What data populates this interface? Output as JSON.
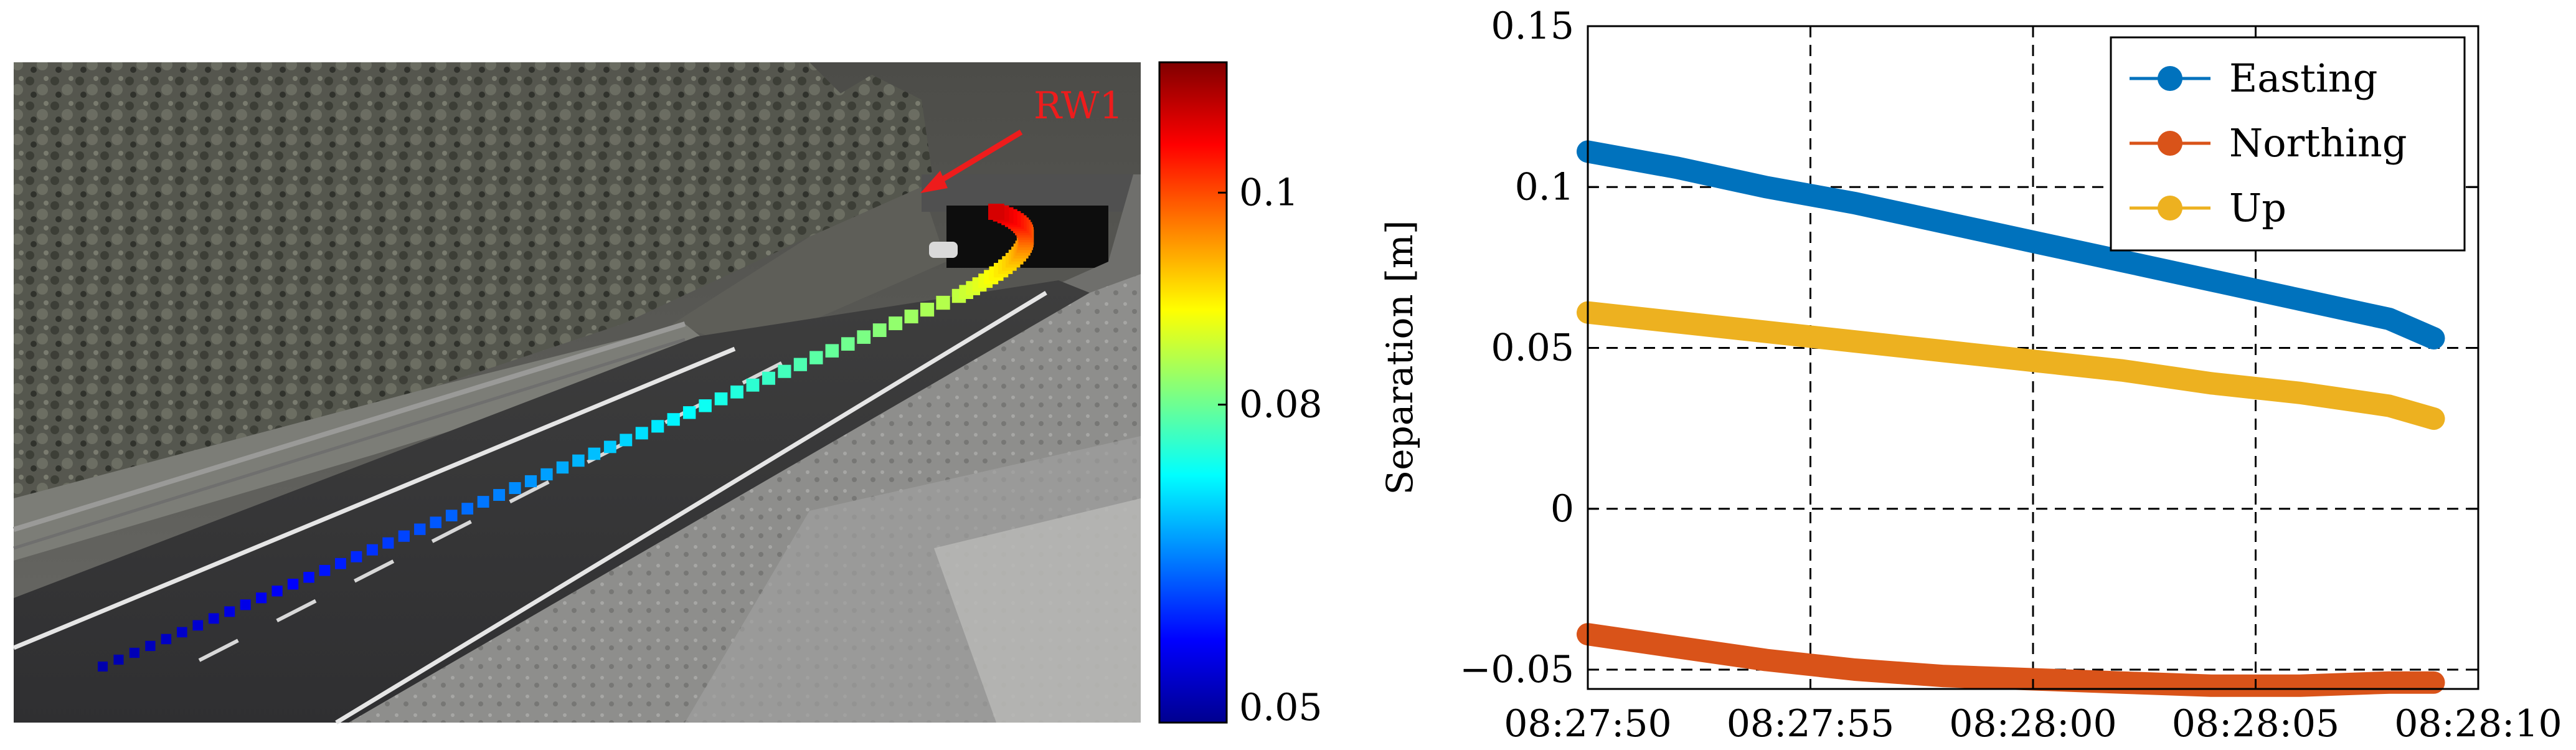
{
  "left_panel": {
    "annotation": "RW1",
    "annotation_color": "#ee1c1c",
    "colorbar": {
      "ticks": [
        {
          "value": 0.1,
          "label": "0.1"
        },
        {
          "value": 0.08,
          "label": "0.08"
        },
        {
          "value": 0.05,
          "label": "0.05"
        }
      ],
      "range": [
        0.05,
        0.1123
      ],
      "colormap": "jet"
    }
  },
  "chart_data": {
    "type": "line",
    "title": "",
    "xlabel": "",
    "ylabel": "Separation [m]",
    "xlim": [
      "08:27:50",
      "08:28:10"
    ],
    "ylim": [
      -0.056,
      0.15
    ],
    "grid": true,
    "grid_style": "dashed",
    "legend_position": "top-right",
    "x_ticks": [
      "08:27:50",
      "08:27:55",
      "08:28:00",
      "08:28:05",
      "08:28:10"
    ],
    "y_ticks": [
      {
        "value": 0.15,
        "label": "0.15"
      },
      {
        "value": 0.1,
        "label": "0.1"
      },
      {
        "value": 0.05,
        "label": "0.05"
      },
      {
        "value": 0,
        "label": "0"
      },
      {
        "value": -0.05,
        "label": "−0.05"
      }
    ],
    "x": [
      "08:27:50",
      "08:27:52",
      "08:27:54",
      "08:27:56",
      "08:27:58",
      "08:28:00",
      "08:28:02",
      "08:28:04",
      "08:28:06",
      "08:28:08",
      "08:28:09"
    ],
    "series": [
      {
        "name": "Easting",
        "color": "#0072bd",
        "values": [
          0.111,
          0.106,
          0.1,
          0.095,
          0.089,
          0.083,
          0.077,
          0.071,
          0.065,
          0.059,
          0.053
        ]
      },
      {
        "name": "Northing",
        "color": "#d95319",
        "values": [
          -0.039,
          -0.043,
          -0.047,
          -0.05,
          -0.052,
          -0.053,
          -0.054,
          -0.055,
          -0.055,
          -0.054,
          -0.054
        ]
      },
      {
        "name": "Up",
        "color": "#edb120",
        "values": [
          0.061,
          0.058,
          0.055,
          0.052,
          0.049,
          0.046,
          0.043,
          0.039,
          0.036,
          0.032,
          0.028
        ]
      }
    ]
  }
}
